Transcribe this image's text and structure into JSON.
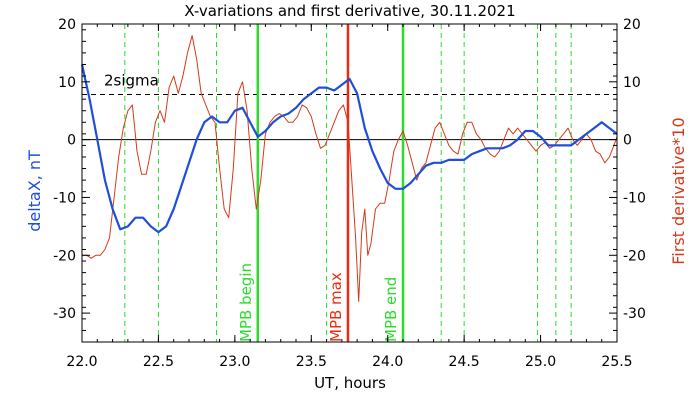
{
  "chart_data": {
    "type": "line",
    "title": "X-variations and first derivative, 30.11.2021",
    "xlabel": "UT, hours",
    "ylabel_left": "deltaX, nT",
    "ylabel_right": "First derivative*10",
    "xlim": [
      22.0,
      25.5
    ],
    "ylim": [
      -35,
      20
    ],
    "x_ticks": [
      22.0,
      22.5,
      23.0,
      23.5,
      24.0,
      24.5,
      25.0,
      25.5
    ],
    "x_tick_labels": [
      "22.0",
      "22.5",
      "23.0",
      "23.5",
      "24.0",
      "24.5",
      "25.0",
      "25.5"
    ],
    "y_ticks": [
      -30,
      -20,
      -10,
      0,
      10,
      20
    ],
    "y_tick_labels": [
      "-30",
      "-20",
      "-10",
      "0",
      "10",
      "20"
    ],
    "sigma_level": 7.8,
    "sigma_label": "2sigma",
    "colors": {
      "deltaX": "#1f4fd8",
      "derivative": "#d43a1a",
      "mpb_boundary": "#2bdc2b",
      "mpb_max": "#ee2a10",
      "dashed_verticals": "#2bdc2b",
      "axis": "#000000"
    },
    "dashed_verticals": [
      22.28,
      22.5,
      22.88,
      23.6,
      24.35,
      24.5,
      24.98,
      25.1,
      25.2
    ],
    "markers": [
      {
        "x": 23.15,
        "label": "MPB begin",
        "kind": "boundary"
      },
      {
        "x": 23.74,
        "label": "MPB max",
        "kind": "max"
      },
      {
        "x": 24.1,
        "label": "MPB end",
        "kind": "boundary"
      }
    ],
    "series": [
      {
        "name": "deltaX, nT",
        "axis": "left",
        "x": [
          22.0,
          22.05,
          22.1,
          22.15,
          22.2,
          22.25,
          22.3,
          22.35,
          22.4,
          22.45,
          22.5,
          22.55,
          22.6,
          22.65,
          22.7,
          22.75,
          22.8,
          22.85,
          22.9,
          22.95,
          23.0,
          23.05,
          23.1,
          23.15,
          23.2,
          23.25,
          23.3,
          23.35,
          23.4,
          23.45,
          23.5,
          23.55,
          23.6,
          23.65,
          23.7,
          23.75,
          23.8,
          23.85,
          23.9,
          23.95,
          24.0,
          24.05,
          24.1,
          24.15,
          24.2,
          24.25,
          24.3,
          24.35,
          24.4,
          24.45,
          24.5,
          24.55,
          24.6,
          24.65,
          24.7,
          24.75,
          24.8,
          24.85,
          24.9,
          24.95,
          25.0,
          25.05,
          25.1,
          25.15,
          25.2,
          25.25,
          25.3,
          25.35,
          25.4,
          25.45,
          25.5
        ],
        "y": [
          13,
          7,
          0,
          -7,
          -12,
          -15.5,
          -15,
          -13.5,
          -13.5,
          -15,
          -16,
          -15,
          -12,
          -8,
          -4,
          0,
          3,
          4,
          3,
          3,
          5,
          5.5,
          3,
          0.5,
          1.5,
          3,
          4,
          4.5,
          5.5,
          7,
          8,
          9,
          9,
          8.5,
          9.5,
          10.5,
          8,
          2,
          -2,
          -5,
          -7.5,
          -8.5,
          -8.5,
          -7.5,
          -6,
          -4.5,
          -4,
          -4,
          -3.5,
          -3.5,
          -3.5,
          -2.5,
          -2,
          -1.5,
          -1.5,
          -1.5,
          -1,
          0,
          1.5,
          1.5,
          0.5,
          -1,
          -1,
          -1,
          -1,
          0,
          1,
          2,
          3,
          2,
          1
        ]
      },
      {
        "name": "First derivative*10",
        "axis": "right",
        "x": [
          22.0,
          22.03,
          22.06,
          22.09,
          22.12,
          22.15,
          22.18,
          22.21,
          22.24,
          22.27,
          22.3,
          22.33,
          22.36,
          22.39,
          22.42,
          22.45,
          22.48,
          22.51,
          22.54,
          22.57,
          22.6,
          22.63,
          22.66,
          22.69,
          22.72,
          22.75,
          22.78,
          22.81,
          22.84,
          22.87,
          22.9,
          22.93,
          22.96,
          22.99,
          23.02,
          23.05,
          23.08,
          23.11,
          23.14,
          23.17,
          23.2,
          23.23,
          23.26,
          23.29,
          23.32,
          23.35,
          23.38,
          23.41,
          23.44,
          23.47,
          23.5,
          23.53,
          23.56,
          23.59,
          23.62,
          23.65,
          23.68,
          23.71,
          23.74,
          23.77,
          23.79,
          23.81,
          23.83,
          23.85,
          23.87,
          23.89,
          23.92,
          23.95,
          23.98,
          24.01,
          24.04,
          24.07,
          24.1,
          24.13,
          24.16,
          24.19,
          24.22,
          24.25,
          24.28,
          24.31,
          24.34,
          24.37,
          24.4,
          24.43,
          24.46,
          24.49,
          24.52,
          24.55,
          24.58,
          24.61,
          24.64,
          24.67,
          24.7,
          24.73,
          24.76,
          24.79,
          24.82,
          24.85,
          24.88,
          24.91,
          24.94,
          24.97,
          25.0,
          25.03,
          25.06,
          25.09,
          25.12,
          25.15,
          25.18,
          25.21,
          25.24,
          25.27,
          25.3,
          25.33,
          25.36,
          25.39,
          25.42,
          25.45,
          25.48,
          25.5
        ],
        "y": [
          -20,
          -20,
          -20.5,
          -20,
          -20,
          -19,
          -17,
          -10,
          -3,
          2,
          5,
          6,
          -2,
          -6,
          -6,
          -2,
          3,
          5,
          3,
          9,
          11,
          8,
          11,
          15,
          18,
          14,
          8,
          6,
          4,
          3,
          -5,
          -12,
          -13.5,
          -5,
          8,
          10,
          5,
          -5,
          -12,
          -7,
          1,
          3,
          4,
          4.5,
          4,
          3,
          3,
          4,
          6,
          5.5,
          4,
          1,
          -1.5,
          -1,
          1,
          3,
          5,
          6,
          3,
          -9,
          -17,
          -28,
          -16,
          -12,
          -20,
          -18,
          -12,
          -11,
          -11,
          -7,
          -2,
          0,
          1.5,
          -1,
          -4,
          -7,
          -5,
          -4,
          -1,
          2,
          3,
          1,
          -1,
          -2,
          -2.5,
          1,
          3,
          3,
          1,
          0,
          -1.5,
          -2.5,
          -3,
          -2,
          0,
          2,
          1,
          2,
          1,
          0,
          -1,
          -2,
          -1,
          -0.5,
          -1.5,
          -1,
          0,
          1,
          2,
          0,
          -1,
          0,
          1,
          0,
          -2,
          -2.5,
          -4,
          -3,
          -1,
          0.5
        ]
      }
    ]
  }
}
